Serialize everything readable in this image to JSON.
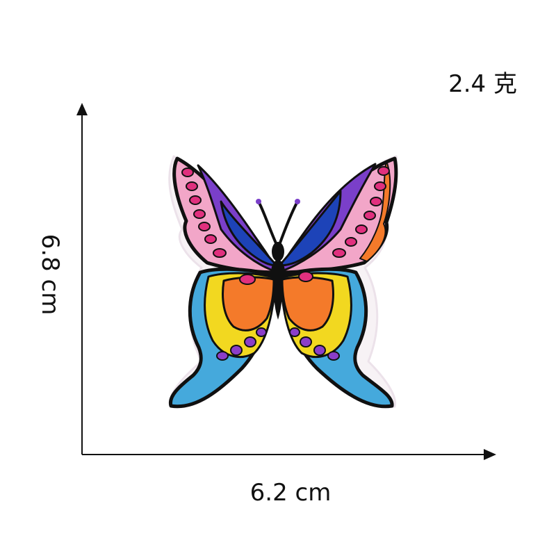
{
  "dimensions": {
    "weight": "2.4 克",
    "width": "6.2 cm",
    "height": "6.8 cm"
  },
  "subject": {
    "icon": "butterfly-patch-icon",
    "colors": {
      "outline": "#101010",
      "violet": "#7a3fc9",
      "blue": "#1d43b8",
      "pink": "#f2a6c8",
      "magenta": "#e0307e",
      "orange": "#f47a2a",
      "yellow": "#f2d820",
      "sky": "#45a9dc",
      "purple-dot": "#8b3ec9"
    }
  }
}
